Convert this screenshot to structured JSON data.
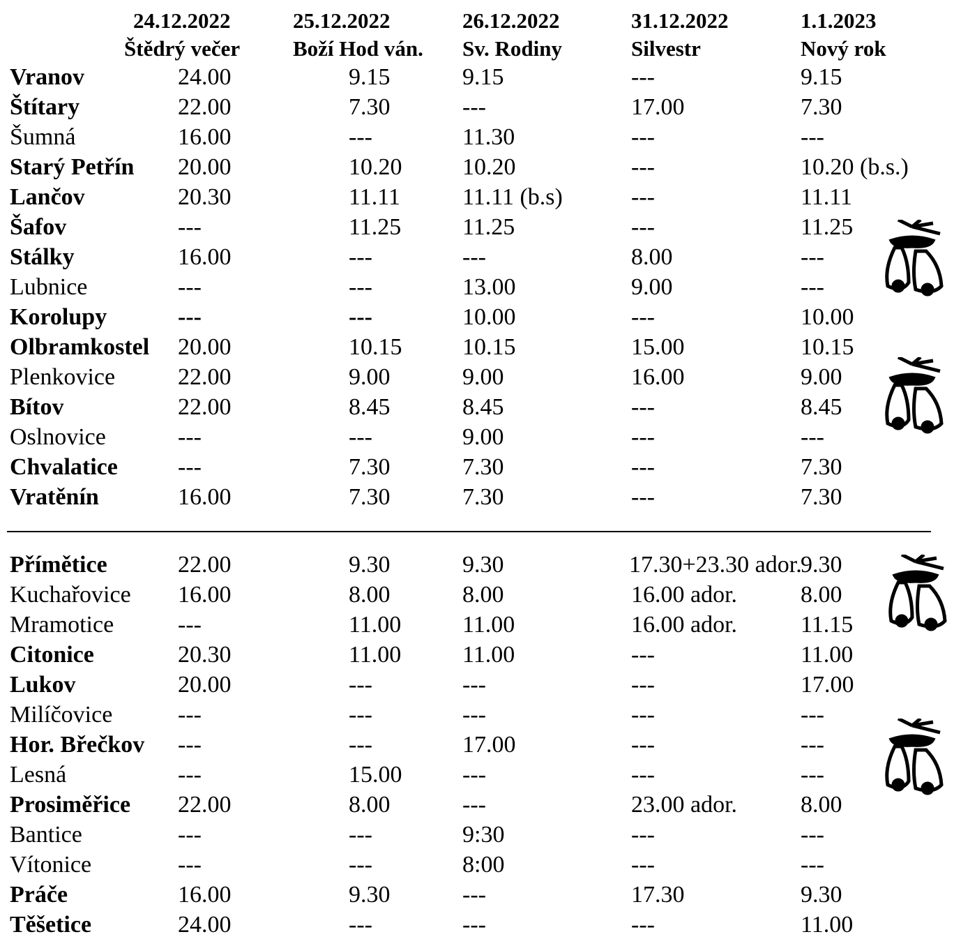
{
  "header": {
    "columns": [
      {
        "date": "24.12.2022",
        "day": "Štědrý večer"
      },
      {
        "date": "25.12.2022",
        "day": "Boží Hod ván."
      },
      {
        "date": "26.12.2022",
        "day": "Sv. Rodiny"
      },
      {
        "date": "31.12.2022",
        "day": "Silvestr"
      },
      {
        "date": "1.1.2023",
        "day": "Nový rok"
      }
    ]
  },
  "groups": [
    {
      "rows": [
        {
          "name": "Vranov",
          "bold": true,
          "times": [
            "24.00",
            "9.15",
            "9.15",
            "---",
            "9.15"
          ]
        },
        {
          "name": "Štítary",
          "bold": true,
          "times": [
            "22.00",
            "7.30",
            "---",
            "17.00",
            "7.30"
          ]
        },
        {
          "name": "Šumná",
          "bold": false,
          "times": [
            "16.00",
            "---",
            "11.30",
            "---",
            "---"
          ]
        },
        {
          "name": "Starý Petřín",
          "bold": true,
          "times": [
            "20.00",
            "10.20",
            "10.20",
            "---",
            "10.20 (b.s.)"
          ]
        },
        {
          "name": "Lančov",
          "bold": true,
          "times": [
            "20.30",
            "11.11",
            "11.11 (b.s)",
            "---",
            "11.11"
          ]
        },
        {
          "name": "Šafov",
          "bold": true,
          "times": [
            "---",
            "11.25",
            "11.25",
            "---",
            "11.25"
          ]
        },
        {
          "name": "Stálky",
          "bold": true,
          "times": [
            "16.00",
            "---",
            "---",
            "8.00",
            "---"
          ]
        },
        {
          "name": "Lubnice",
          "bold": false,
          "times": [
            "---",
            "---",
            "13.00",
            "9.00",
            "---"
          ]
        },
        {
          "name": "Korolupy",
          "bold": true,
          "bold_cells": [
            0,
            1
          ],
          "times": [
            "---",
            "---",
            "10.00",
            "---",
            "10.00"
          ]
        },
        {
          "name": "Olbramkostel",
          "bold": true,
          "times": [
            "20.00",
            "10.15",
            "10.15",
            "15.00",
            "10.15"
          ]
        },
        {
          "name": "Plenkovice",
          "bold": false,
          "times": [
            "22.00",
            "9.00",
            "9.00",
            "16.00",
            "9.00"
          ]
        },
        {
          "name": "Bítov",
          "bold": true,
          "times": [
            "22.00",
            "8.45",
            "8.45",
            "---",
            "8.45"
          ]
        },
        {
          "name": "Oslnovice",
          "bold": false,
          "times": [
            "---",
            "---",
            "9.00",
            "---",
            "---"
          ]
        },
        {
          "name": "Chvalatice",
          "bold": true,
          "times": [
            "---",
            "7.30",
            "7.30",
            "---",
            "7.30"
          ]
        },
        {
          "name": "Vratěnín",
          "bold": true,
          "times": [
            "16.00",
            "7.30",
            "7.30",
            "---",
            "7.30"
          ]
        }
      ]
    },
    {
      "rows": [
        {
          "name": "Přímětice",
          "bold": true,
          "times": [
            "22.00",
            "9.30",
            "9.30",
            "17.30+23.30 ador.",
            "9.30"
          ]
        },
        {
          "name": "Kuchařovice",
          "bold": false,
          "times": [
            "16.00",
            "8.00",
            "8.00",
            "16.00 ador.",
            "8.00"
          ]
        },
        {
          "name": "Mramotice",
          "bold": false,
          "times": [
            "---",
            "11.00",
            "11.00",
            "16.00 ador.",
            "11.15"
          ]
        },
        {
          "name": "Citonice",
          "bold": true,
          "times": [
            "20.30",
            "11.00",
            "11.00",
            "---",
            "11.00"
          ]
        },
        {
          "name": "Lukov",
          "bold": true,
          "times": [
            "20.00",
            "---",
            "---",
            "---",
            "17.00"
          ]
        },
        {
          "name": "Milíčovice",
          "bold": false,
          "times": [
            "---",
            "---",
            "---",
            "---",
            "---"
          ]
        },
        {
          "name": "Hor. Břečkov",
          "bold": true,
          "times": [
            "---",
            "---",
            "17.00",
            "---",
            "---"
          ]
        },
        {
          "name": "Lesná",
          "bold": false,
          "times": [
            "---",
            "15.00",
            "---",
            "---",
            "---"
          ]
        },
        {
          "name": "Prosiměřice",
          "bold": true,
          "times": [
            "22.00",
            "8.00",
            "---",
            "23.00 ador.",
            "8.00"
          ]
        },
        {
          "name": "Bantice",
          "bold": false,
          "times": [
            "---",
            "---",
            "9:30",
            "---",
            "---"
          ]
        },
        {
          "name": "Vítonice",
          "bold": false,
          "times": [
            "---",
            "---",
            "8:00",
            "---",
            "---"
          ]
        },
        {
          "name": "Práče",
          "bold": true,
          "times": [
            "16.00",
            "9.30",
            "---",
            "17.30",
            "9.30"
          ]
        },
        {
          "name": "Těšetice",
          "bold": true,
          "times": [
            "24.00",
            "---",
            "---",
            "---",
            "11.00"
          ]
        }
      ]
    }
  ]
}
